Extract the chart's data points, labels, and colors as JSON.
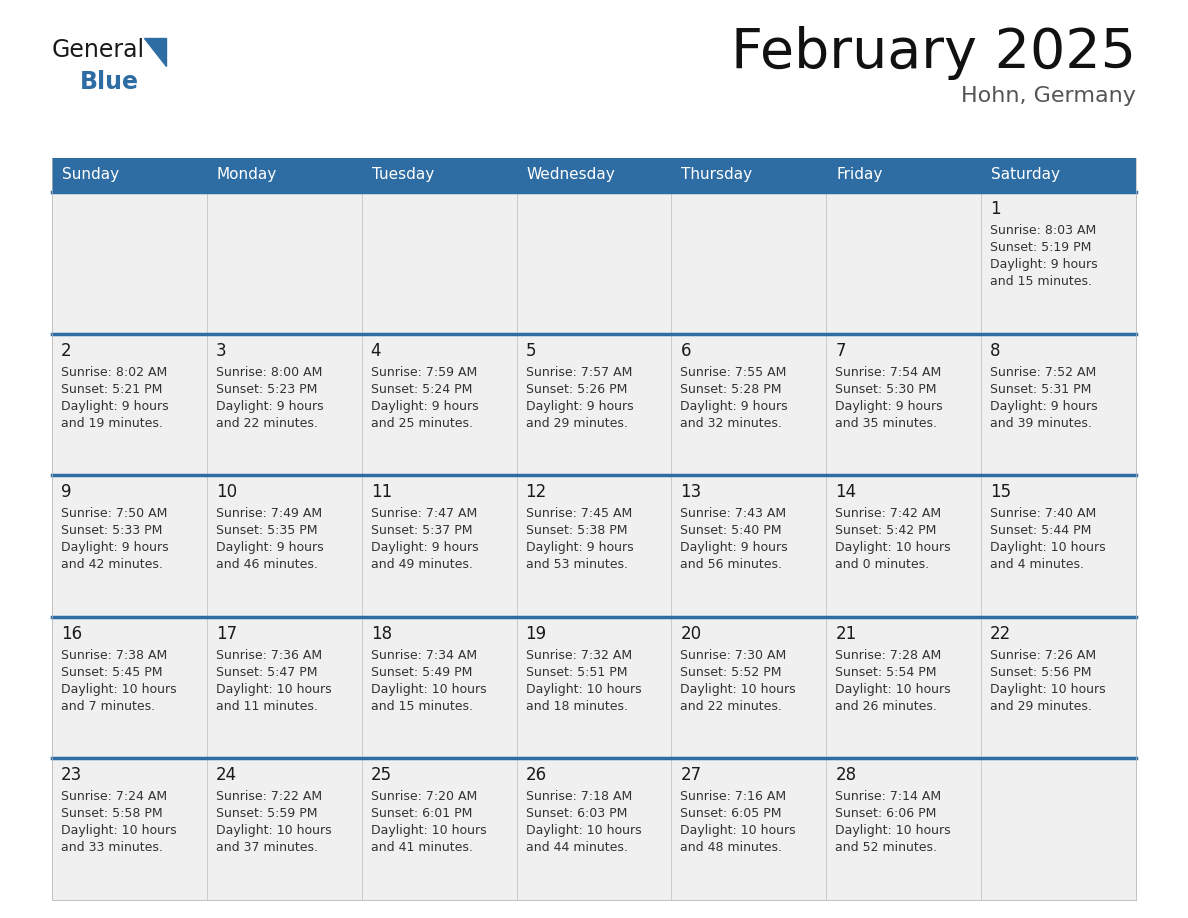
{
  "title": "February 2025",
  "subtitle": "Hohn, Germany",
  "header_bg": "#2E6DA4",
  "header_fg": "#FFFFFF",
  "page_bg": "#FFFFFF",
  "row_border_color": "#2E6DA4",
  "cell_top_bg": "#EEEEEE",
  "cell_main_bg": "#FFFFFF",
  "day_number_color": "#1a1a1a",
  "info_text_color": "#333333",
  "cell_border_color": "#BBBBBB",
  "logo_general_color": "#1a1a1a",
  "logo_blue_color": "#2E6DA4",
  "logo_triangle_color": "#2E6DA4",
  "days_of_week": [
    "Sunday",
    "Monday",
    "Tuesday",
    "Wednesday",
    "Thursday",
    "Friday",
    "Saturday"
  ],
  "calendar_data": [
    [
      null,
      null,
      null,
      null,
      null,
      null,
      {
        "day": "1",
        "sunrise": "8:03 AM",
        "sunset": "5:19 PM",
        "daylight": "9 hours",
        "daylight2": "and 15 minutes."
      }
    ],
    [
      {
        "day": "2",
        "sunrise": "8:02 AM",
        "sunset": "5:21 PM",
        "daylight": "9 hours",
        "daylight2": "and 19 minutes."
      },
      {
        "day": "3",
        "sunrise": "8:00 AM",
        "sunset": "5:23 PM",
        "daylight": "9 hours",
        "daylight2": "and 22 minutes."
      },
      {
        "day": "4",
        "sunrise": "7:59 AM",
        "sunset": "5:24 PM",
        "daylight": "9 hours",
        "daylight2": "and 25 minutes."
      },
      {
        "day": "5",
        "sunrise": "7:57 AM",
        "sunset": "5:26 PM",
        "daylight": "9 hours",
        "daylight2": "and 29 minutes."
      },
      {
        "day": "6",
        "sunrise": "7:55 AM",
        "sunset": "5:28 PM",
        "daylight": "9 hours",
        "daylight2": "and 32 minutes."
      },
      {
        "day": "7",
        "sunrise": "7:54 AM",
        "sunset": "5:30 PM",
        "daylight": "9 hours",
        "daylight2": "and 35 minutes."
      },
      {
        "day": "8",
        "sunrise": "7:52 AM",
        "sunset": "5:31 PM",
        "daylight": "9 hours",
        "daylight2": "and 39 minutes."
      }
    ],
    [
      {
        "day": "9",
        "sunrise": "7:50 AM",
        "sunset": "5:33 PM",
        "daylight": "9 hours",
        "daylight2": "and 42 minutes."
      },
      {
        "day": "10",
        "sunrise": "7:49 AM",
        "sunset": "5:35 PM",
        "daylight": "9 hours",
        "daylight2": "and 46 minutes."
      },
      {
        "day": "11",
        "sunrise": "7:47 AM",
        "sunset": "5:37 PM",
        "daylight": "9 hours",
        "daylight2": "and 49 minutes."
      },
      {
        "day": "12",
        "sunrise": "7:45 AM",
        "sunset": "5:38 PM",
        "daylight": "9 hours",
        "daylight2": "and 53 minutes."
      },
      {
        "day": "13",
        "sunrise": "7:43 AM",
        "sunset": "5:40 PM",
        "daylight": "9 hours",
        "daylight2": "and 56 minutes."
      },
      {
        "day": "14",
        "sunrise": "7:42 AM",
        "sunset": "5:42 PM",
        "daylight": "10 hours",
        "daylight2": "and 0 minutes."
      },
      {
        "day": "15",
        "sunrise": "7:40 AM",
        "sunset": "5:44 PM",
        "daylight": "10 hours",
        "daylight2": "and 4 minutes."
      }
    ],
    [
      {
        "day": "16",
        "sunrise": "7:38 AM",
        "sunset": "5:45 PM",
        "daylight": "10 hours",
        "daylight2": "and 7 minutes."
      },
      {
        "day": "17",
        "sunrise": "7:36 AM",
        "sunset": "5:47 PM",
        "daylight": "10 hours",
        "daylight2": "and 11 minutes."
      },
      {
        "day": "18",
        "sunrise": "7:34 AM",
        "sunset": "5:49 PM",
        "daylight": "10 hours",
        "daylight2": "and 15 minutes."
      },
      {
        "day": "19",
        "sunrise": "7:32 AM",
        "sunset": "5:51 PM",
        "daylight": "10 hours",
        "daylight2": "and 18 minutes."
      },
      {
        "day": "20",
        "sunrise": "7:30 AM",
        "sunset": "5:52 PM",
        "daylight": "10 hours",
        "daylight2": "and 22 minutes."
      },
      {
        "day": "21",
        "sunrise": "7:28 AM",
        "sunset": "5:54 PM",
        "daylight": "10 hours",
        "daylight2": "and 26 minutes."
      },
      {
        "day": "22",
        "sunrise": "7:26 AM",
        "sunset": "5:56 PM",
        "daylight": "10 hours",
        "daylight2": "and 29 minutes."
      }
    ],
    [
      {
        "day": "23",
        "sunrise": "7:24 AM",
        "sunset": "5:58 PM",
        "daylight": "10 hours",
        "daylight2": "and 33 minutes."
      },
      {
        "day": "24",
        "sunrise": "7:22 AM",
        "sunset": "5:59 PM",
        "daylight": "10 hours",
        "daylight2": "and 37 minutes."
      },
      {
        "day": "25",
        "sunrise": "7:20 AM",
        "sunset": "6:01 PM",
        "daylight": "10 hours",
        "daylight2": "and 41 minutes."
      },
      {
        "day": "26",
        "sunrise": "7:18 AM",
        "sunset": "6:03 PM",
        "daylight": "10 hours",
        "daylight2": "and 44 minutes."
      },
      {
        "day": "27",
        "sunrise": "7:16 AM",
        "sunset": "6:05 PM",
        "daylight": "10 hours",
        "daylight2": "and 48 minutes."
      },
      {
        "day": "28",
        "sunrise": "7:14 AM",
        "sunset": "6:06 PM",
        "daylight": "10 hours",
        "daylight2": "and 52 minutes."
      },
      null
    ]
  ]
}
